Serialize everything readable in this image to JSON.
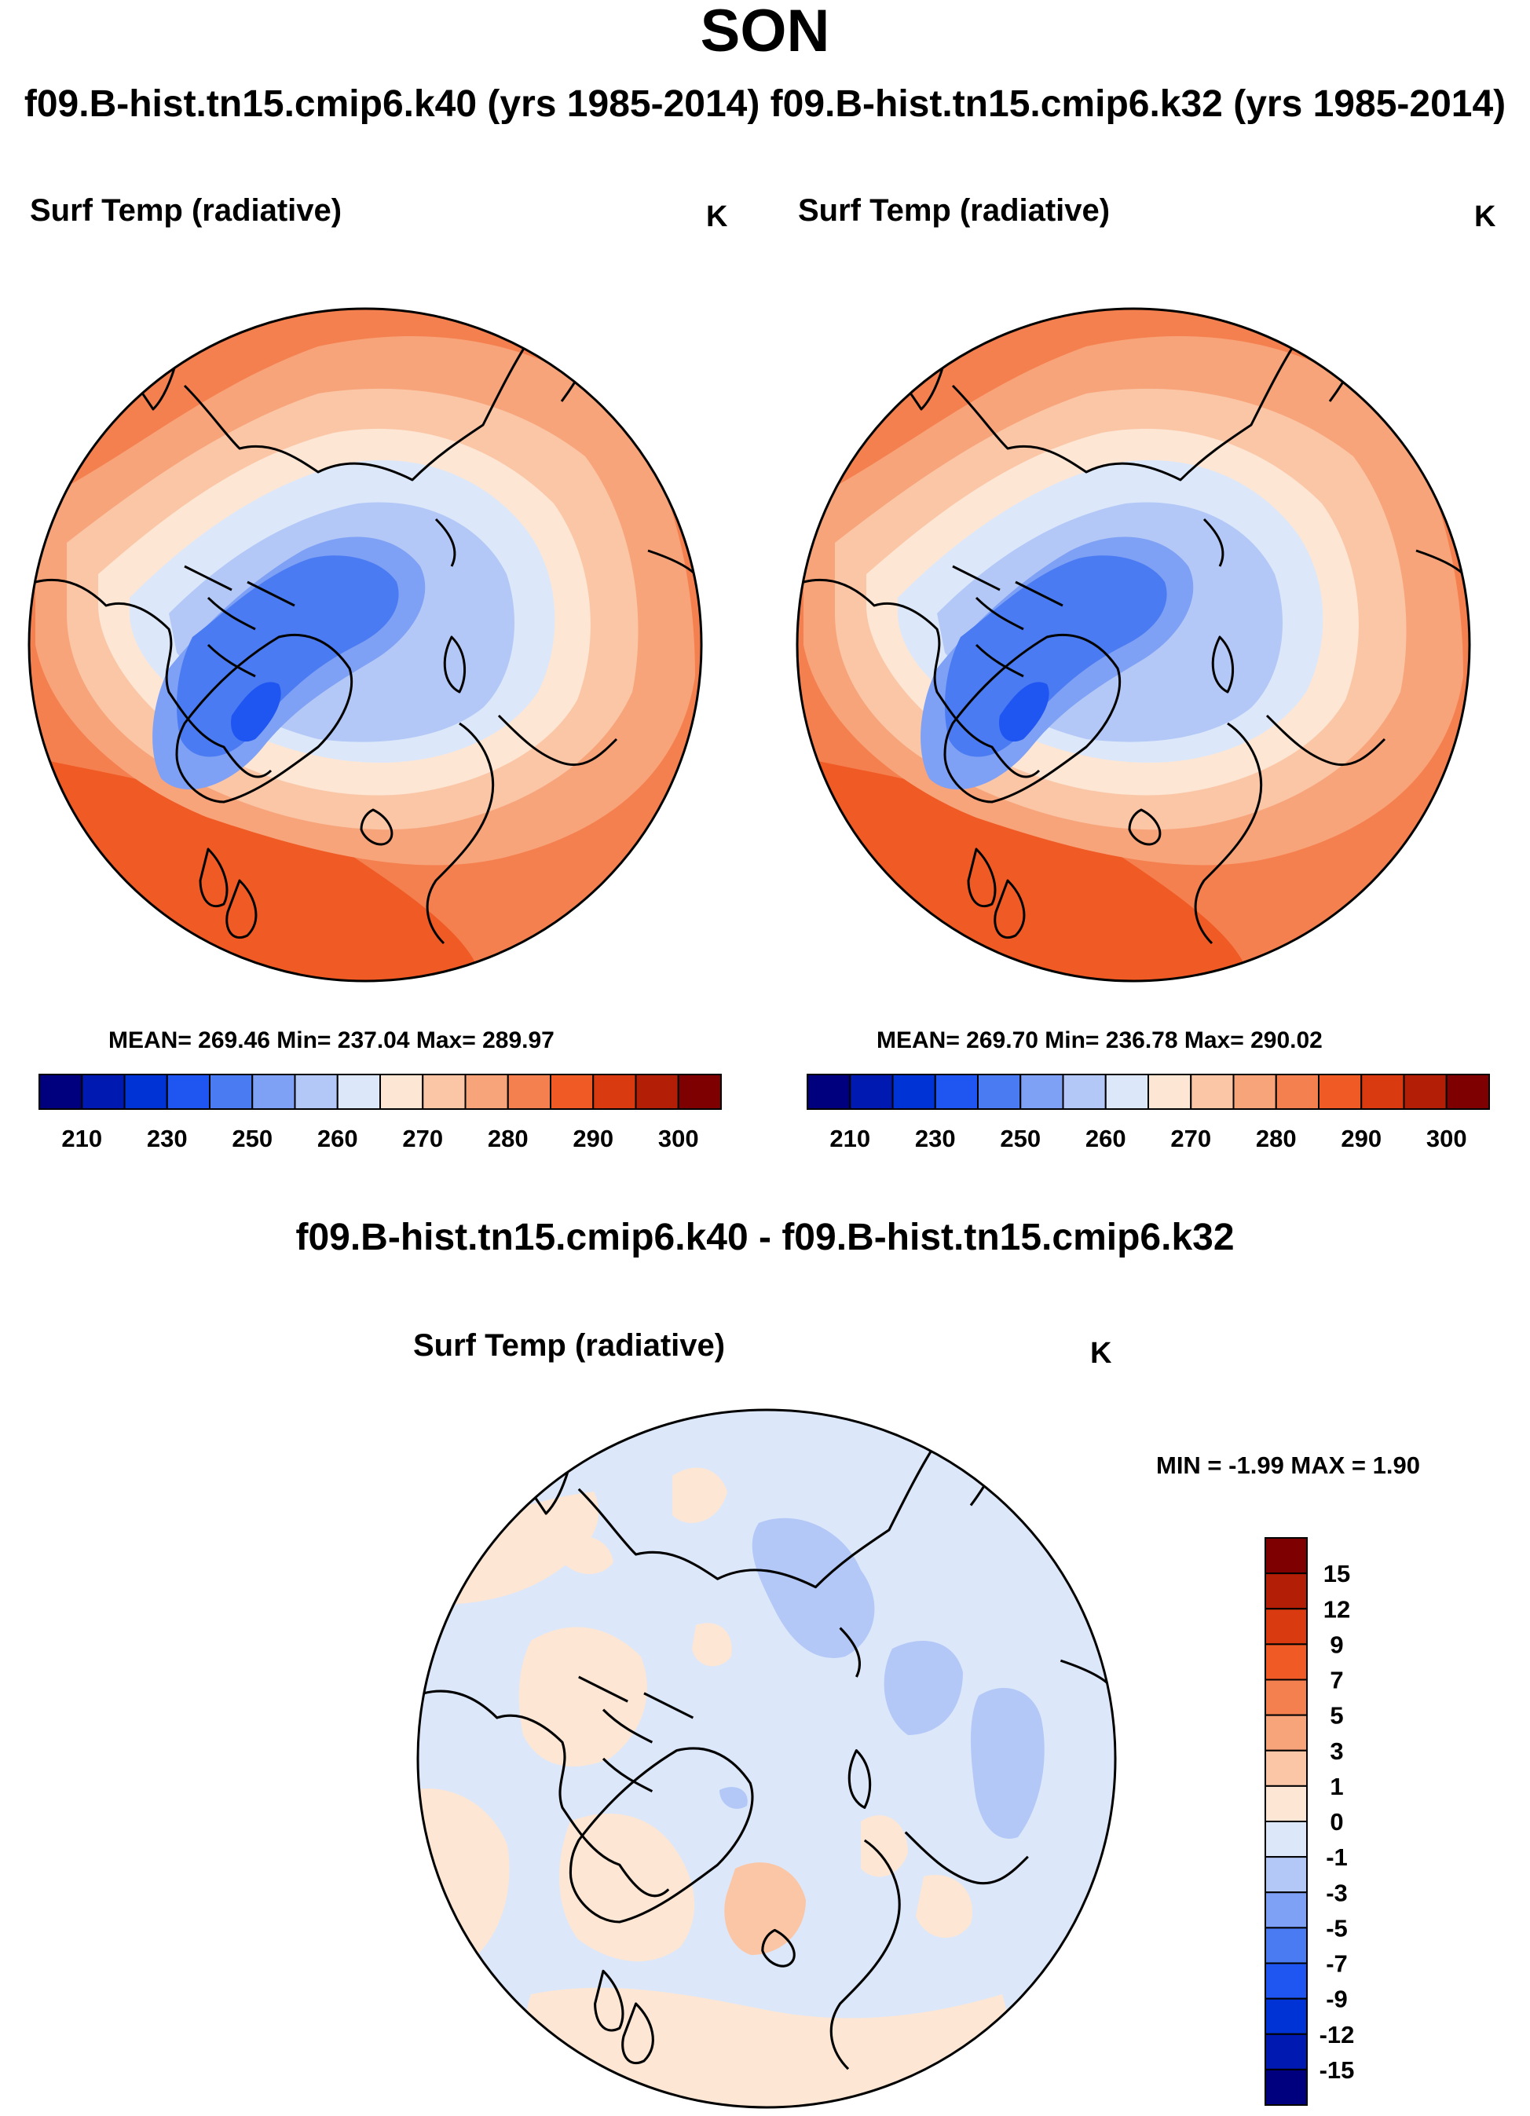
{
  "title": "SON",
  "subtitle": "f09.B-hist.tn15.cmip6.k40 (yrs 1985-2014) f09.B-hist.tn15.cmip6.k32 (yrs 1985-2014)",
  "panels": [
    {
      "title": "Surf Temp (radiative)",
      "unit": "K",
      "stats": "MEAN= 269.46  Min= 237.04  Max= 289.97"
    },
    {
      "title": "Surf Temp (radiative)",
      "unit": "K",
      "stats": "MEAN= 269.70  Min= 236.78  Max= 290.02"
    }
  ],
  "diff_panel": {
    "heading": "f09.B-hist.tn15.cmip6.k40 - f09.B-hist.tn15.cmip6.k32",
    "title": "Surf Temp (radiative)",
    "unit": "K",
    "minmax": "MIN =  -1.99 MAX =   1.90"
  },
  "abs_colorbar": {
    "labels": [
      "210",
      "230",
      "250",
      "260",
      "270",
      "280",
      "290",
      "300"
    ],
    "colors": [
      "#00007f",
      "#0019b0",
      "#0033d6",
      "#1f55f0",
      "#4a7bf2",
      "#7ea0f5",
      "#b3c8f7",
      "#dce8fa",
      "#fde6d4",
      "#fbc6a6",
      "#f8a47a",
      "#f5804f",
      "#ef5a25",
      "#d93a10",
      "#b21e06",
      "#7f0000"
    ]
  },
  "diff_colorbar": {
    "labels": [
      "15",
      "12",
      "9",
      "7",
      "5",
      "3",
      "1",
      "0",
      "-1",
      "-3",
      "-5",
      "-7",
      "-9",
      "-12",
      "-15"
    ],
    "colors": [
      "#7f0000",
      "#b21e06",
      "#d93a10",
      "#ef5a25",
      "#f5804f",
      "#f8a47a",
      "#fbc6a6",
      "#fde6d4",
      "#dce8fa",
      "#b3c8f7",
      "#7ea0f5",
      "#4a7bf2",
      "#1f55f0",
      "#0033d6",
      "#0019b0",
      "#00007f"
    ]
  }
}
